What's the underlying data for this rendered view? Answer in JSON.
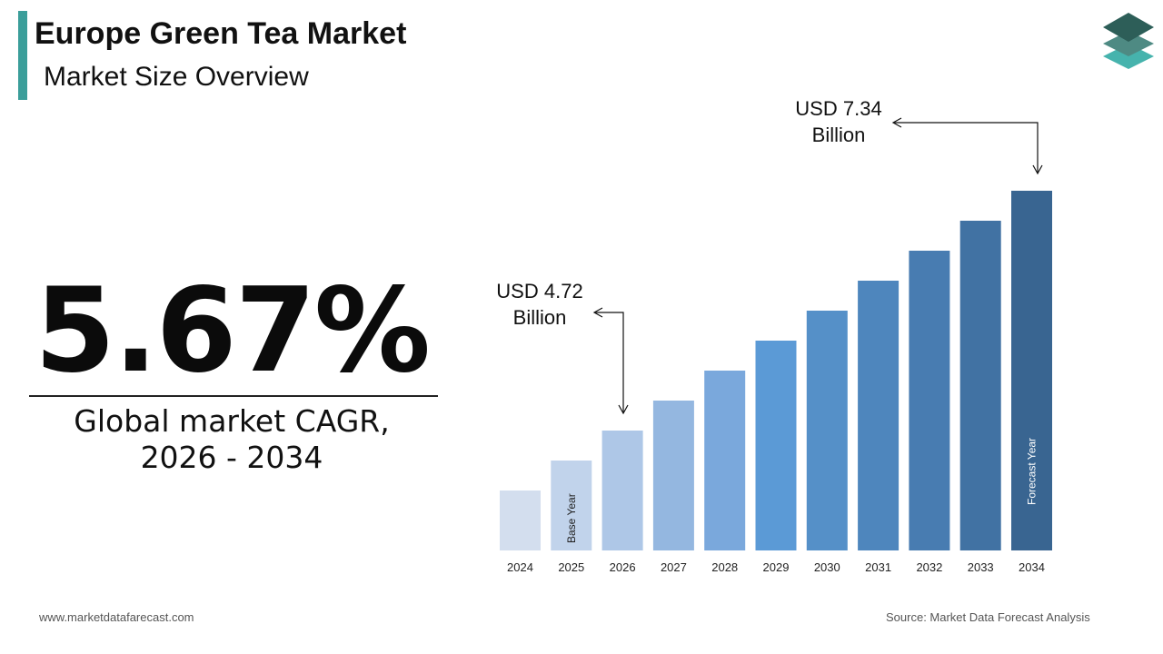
{
  "header": {
    "title": "Europe Green Tea Market",
    "subtitle": "Market Size Overview"
  },
  "cagr": {
    "value": "5.67%",
    "label_line1": "Global market CAGR,",
    "label_line2": "2026 - 2034"
  },
  "callouts": {
    "start_line1": "USD 4.72",
    "start_line2": "Billion",
    "end_line1": "USD 7.34",
    "end_line2": "Billion"
  },
  "footer": {
    "website": "www.marketdatafarecast.com",
    "source": "Source: Market Data Forecast Analysis"
  },
  "colors": {
    "accent": "#3b9e9a",
    "logo_top": "#2d5e58",
    "logo_mid": "#4e8a83",
    "logo_bottom": "#46b3ad"
  },
  "chart_data": {
    "type": "bar",
    "categories": [
      "2024",
      "2025",
      "2026",
      "2027",
      "2028",
      "2029",
      "2030",
      "2031",
      "2032",
      "2033",
      "2034"
    ],
    "values": [
      2,
      3,
      4,
      5,
      6,
      7,
      8,
      9,
      10,
      11,
      12
    ],
    "bar_colors": [
      "#d3deee",
      "#c1d3eb",
      "#aec7e7",
      "#94b7e0",
      "#7aa8dc",
      "#5b9ad6",
      "#5590c8",
      "#4e86bd",
      "#487cb1",
      "#4172a3",
      "#396591"
    ],
    "bar_labels": [
      {
        "category": "2025",
        "text": "Base Year"
      },
      {
        "category": "2034",
        "text": "Forecast Year"
      }
    ],
    "ylim": [
      0,
      12
    ],
    "xlabel": "",
    "ylabel": "",
    "grid": false,
    "legend": "none"
  }
}
